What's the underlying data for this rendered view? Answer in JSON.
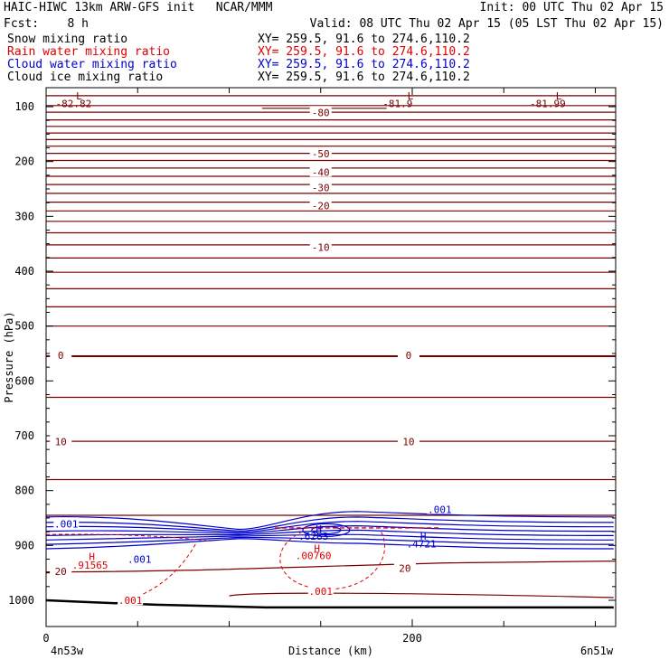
{
  "header": {
    "line1_left": "HAIC-HIWC 13km ARW-GFS init   NCAR/MMM",
    "line1_right": "Init: 00 UTC Thu 02 Apr 15",
    "line2_left": "Fcst:    8 h",
    "line2_right": "Valid: 08 UTC Thu 02 Apr 15 (05 LST Thu 02 Apr 15)"
  },
  "legend": [
    {
      "label": "Snow mixing ratio",
      "range": "XY= 259.5, 91.6 to 274.6,110.2",
      "color": "#000000"
    },
    {
      "label": "Rain water mixing ratio",
      "range": "XY= 259.5, 91.6 to 274.6,110.2",
      "color": "#e00000"
    },
    {
      "label": "Cloud water mixing ratio",
      "range": "XY= 259.5, 91.6 to 274.6,110.2",
      "color": "#0000cc"
    },
    {
      "label": "Cloud ice mixing ratio",
      "range": "XY= 259.5, 91.6 to 274.6,110.2",
      "color": "#000000"
    }
  ],
  "chart_data": {
    "type": "line",
    "xlabel": "Distance (km)",
    "ylabel": "Pressure (hPa)",
    "xlim": [
      0,
      310
    ],
    "ylim": [
      1050,
      75
    ],
    "x_ticks": [
      0,
      200
    ],
    "x_minor_ticks": [
      50,
      100,
      150,
      250,
      300
    ],
    "y_ticks": [
      100,
      200,
      300,
      400,
      500,
      600,
      700,
      800,
      900,
      1000
    ],
    "x_endpoint_labels": {
      "left": "4n53w",
      "right": "6n51w"
    },
    "colors": {
      "temperature": "#7a0000",
      "cloud_water": "#0000cc",
      "rain_water": "#e00000",
      "terrain": "#000000"
    },
    "temperature_isotherm_pressures": [
      80,
      98,
      110,
      124,
      136,
      148,
      160,
      172,
      185,
      198,
      212,
      227,
      242,
      258,
      274,
      290,
      309,
      330,
      352,
      376,
      402,
      432,
      465,
      500,
      555,
      630,
      710,
      780,
      845,
      945
    ],
    "temperature_labels": [
      {
        "x": 150,
        "p": 112,
        "text": "-80"
      },
      {
        "x": 150,
        "p": 187,
        "text": "-50"
      },
      {
        "x": 150,
        "p": 221,
        "text": "-40"
      },
      {
        "x": 150,
        "p": 249,
        "text": "-30"
      },
      {
        "x": 150,
        "p": 282,
        "text": "-20"
      },
      {
        "x": 150,
        "p": 358,
        "text": "-10"
      },
      {
        "x": 8,
        "p": 555,
        "text": "0"
      },
      {
        "x": 198,
        "p": 555,
        "text": "0"
      },
      {
        "x": 8,
        "p": 712,
        "text": "10"
      },
      {
        "x": 198,
        "p": 712,
        "text": "10"
      },
      {
        "x": 8,
        "p": 949,
        "text": "20"
      },
      {
        "x": 196,
        "p": 943,
        "text": "20"
      }
    ],
    "extrema_labels": [
      {
        "x": 18,
        "p": 80,
        "text": "L",
        "color": "#7a0000"
      },
      {
        "x": 15,
        "p": 94,
        "text": "-82.82",
        "color": "#7a0000"
      },
      {
        "x": 199,
        "p": 80,
        "text": "L",
        "color": "#7a0000"
      },
      {
        "x": 192,
        "p": 94,
        "text": "-81.9",
        "color": "#7a0000"
      },
      {
        "x": 280,
        "p": 80,
        "text": "L",
        "color": "#7a0000"
      },
      {
        "x": 274,
        "p": 94,
        "text": "-81.99",
        "color": "#7a0000"
      },
      {
        "x": 25,
        "p": 920,
        "text": "H",
        "color": "#e00000"
      },
      {
        "x": 24,
        "p": 936,
        "text": ".91565",
        "color": "#e00000"
      },
      {
        "x": 148,
        "p": 905,
        "text": "H",
        "color": "#e00000"
      },
      {
        "x": 146,
        "p": 918,
        "text": ".00760",
        "color": "#e00000"
      },
      {
        "x": 149,
        "p": 870,
        "text": "H",
        "color": "#0000cc"
      },
      {
        "x": 146,
        "p": 883,
        "text": ".6283",
        "color": "#0000cc"
      },
      {
        "x": 206,
        "p": 883,
        "text": "H",
        "color": "#0000cc"
      },
      {
        "x": 205,
        "p": 897,
        "text": ".4721",
        "color": "#0000cc"
      }
    ],
    "contour_labels": [
      {
        "x": 11,
        "p": 862,
        "text": ".001",
        "color": "#0000cc"
      },
      {
        "x": 51,
        "p": 927,
        "text": ".001",
        "color": "#0000cc"
      },
      {
        "x": 215,
        "p": 836,
        "text": ".001",
        "color": "#0000cc"
      },
      {
        "x": 46,
        "p": 1002,
        "text": ".001",
        "color": "#e00000"
      },
      {
        "x": 150,
        "p": 985,
        "text": ".001",
        "color": "#e00000"
      }
    ],
    "cloud_water_contour_pressures": [
      848,
      858,
      866,
      874,
      882,
      890,
      898,
      906
    ],
    "terrain_pressure": [
      [
        0,
        1000
      ],
      [
        20,
        1003
      ],
      [
        60,
        1008
      ],
      [
        120,
        1013
      ],
      [
        160,
        1013
      ],
      [
        220,
        1013
      ],
      [
        310,
        1013
      ]
    ]
  }
}
